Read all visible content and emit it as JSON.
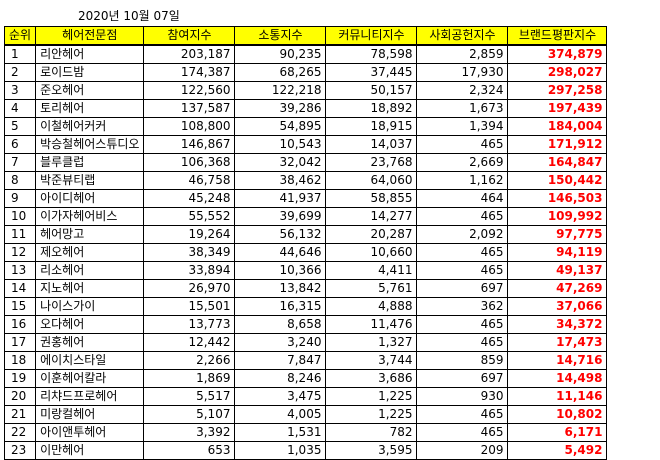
{
  "date": "2020년 10월 07일",
  "headers": [
    "순위",
    "헤어전문점",
    "참여지수",
    "소통지수",
    "커뮤니티지수",
    "사회공헌지수",
    "브랜드평판지수"
  ],
  "accent": "#ffff00",
  "highlight": "#ff0000",
  "rows": [
    [
      "1",
      "리안헤어",
      "203,187",
      "90,235",
      "78,598",
      "2,859",
      "374,879"
    ],
    [
      "2",
      "로이드밤",
      "174,387",
      "68,265",
      "37,445",
      "17,930",
      "298,027"
    ],
    [
      "3",
      "준오헤어",
      "122,560",
      "122,218",
      "50,157",
      "2,324",
      "297,258"
    ],
    [
      "4",
      "토리헤어",
      "137,587",
      "39,286",
      "18,892",
      "1,673",
      "197,439"
    ],
    [
      "5",
      "이철헤어커커",
      "108,800",
      "54,895",
      "18,915",
      "1,394",
      "184,004"
    ],
    [
      "6",
      "박승철헤어스튜디오",
      "146,867",
      "10,543",
      "14,037",
      "465",
      "171,912"
    ],
    [
      "7",
      "블루클럽",
      "106,368",
      "32,042",
      "23,768",
      "2,669",
      "164,847"
    ],
    [
      "8",
      "박준뷰티랩",
      "46,758",
      "38,462",
      "64,060",
      "1,162",
      "150,442"
    ],
    [
      "9",
      "아이디헤어",
      "45,248",
      "41,937",
      "58,855",
      "464",
      "146,503"
    ],
    [
      "10",
      "이가자헤어비스",
      "55,552",
      "39,699",
      "14,277",
      "465",
      "109,992"
    ],
    [
      "11",
      "헤어망고",
      "19,264",
      "56,132",
      "20,287",
      "2,092",
      "97,775"
    ],
    [
      "12",
      "제오헤어",
      "38,349",
      "44,646",
      "10,660",
      "465",
      "94,119"
    ],
    [
      "13",
      "리소헤어",
      "33,894",
      "10,366",
      "4,411",
      "465",
      "49,137"
    ],
    [
      "14",
      "지노헤어",
      "26,970",
      "13,842",
      "5,761",
      "697",
      "47,269"
    ],
    [
      "15",
      "나이스가이",
      "15,501",
      "16,315",
      "4,888",
      "362",
      "37,066"
    ],
    [
      "16",
      "오다헤어",
      "13,773",
      "8,658",
      "11,476",
      "465",
      "34,372"
    ],
    [
      "17",
      "권홍헤어",
      "12,442",
      "3,240",
      "1,327",
      "465",
      "17,473"
    ],
    [
      "18",
      "에이치스타일",
      "2,266",
      "7,847",
      "3,744",
      "859",
      "14,716"
    ],
    [
      "19",
      "이훈헤어칼라",
      "1,869",
      "8,246",
      "3,686",
      "697",
      "14,498"
    ],
    [
      "20",
      "리챠드프로헤어",
      "5,517",
      "3,475",
      "1,225",
      "930",
      "11,146"
    ],
    [
      "21",
      "미랑컬헤어",
      "5,107",
      "4,005",
      "1,225",
      "465",
      "10,802"
    ],
    [
      "22",
      "아이앤투헤어",
      "3,392",
      "1,531",
      "782",
      "465",
      "6,171"
    ],
    [
      "23",
      "이만헤어",
      "653",
      "1,035",
      "3,595",
      "209",
      "5,492"
    ]
  ]
}
